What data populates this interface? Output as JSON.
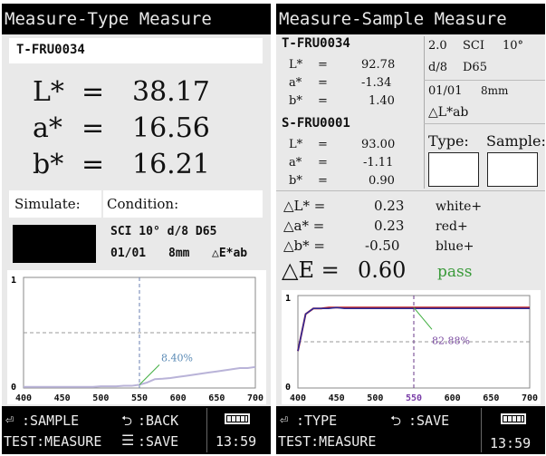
{
  "left": {
    "title": "Measure-Type Measure",
    "sample_id": "T-FRU0034",
    "L": {
      "label": "L*",
      "eq": "=",
      "value": "38.17"
    },
    "a": {
      "label": "a*",
      "eq": "=",
      "value": "16.56"
    },
    "b": {
      "label": "b*",
      "eq": "=",
      "value": "16.21"
    },
    "simulate_label": "Simulate:",
    "condition_label": "Condition:",
    "condition_line1": "SCI 10° d/8 D65",
    "condition_line2_a": "01/01",
    "condition_line2_b": "8mm",
    "condition_line2_c": "△E*ab",
    "graph": {
      "y_max": "1",
      "y_min": "0",
      "x_ticks": [
        "400",
        "450",
        "500",
        "550",
        "600",
        "650",
        "700"
      ],
      "annotation": "8.40%",
      "marker_x": 550
    },
    "footer": {
      "sample_label": ":SAMPLE",
      "back_label": ":BACK",
      "test_label": "TEST:MEASURE",
      "save_label": ":SAVE",
      "time": "13:59"
    }
  },
  "right": {
    "title": "Measure-Sample Measure",
    "target_id": "T-FRU0034",
    "target_L": {
      "label": "L*",
      "eq": "=",
      "value": "92.78"
    },
    "target_a": {
      "label": "a*",
      "eq": "=",
      "value": "-1.34"
    },
    "target_b": {
      "label": "b*",
      "eq": "=",
      "value": "1.40"
    },
    "sample_id": "S-FRU0001",
    "sample_L": {
      "label": "L*",
      "eq": "=",
      "value": "93.00"
    },
    "sample_a": {
      "label": "a*",
      "eq": "=",
      "value": "-1.11"
    },
    "sample_b": {
      "label": "b*",
      "eq": "=",
      "value": "0.90"
    },
    "info_line1_a": "2.0",
    "info_line1_b": "SCI",
    "info_line1_c": "10°",
    "info_line2_a": "d/8",
    "info_line2_b": "D65",
    "info_line3_a": "01/01",
    "info_line3_b": "8mm",
    "info_line4": "△L*ab",
    "type_label": "Type:",
    "sample_label": "Sample:",
    "dL": {
      "label": "△L* =",
      "value": "0.23",
      "desc": "white+"
    },
    "da": {
      "label": "△a* =",
      "value": "0.23",
      "desc": "red+"
    },
    "db": {
      "label": "△b* =",
      "value": "-0.50",
      "desc": "blue+"
    },
    "dE": {
      "label": "△E = ",
      "value": "0.60",
      "result": "pass"
    },
    "pass_color": "#3a9a3a",
    "graph": {
      "y_max": "1",
      "y_min": "0",
      "x_ticks": [
        "400",
        "450",
        "500",
        "550",
        "600",
        "650",
        "700"
      ],
      "highlight_tick": "550",
      "annotation": "82.88%",
      "marker_x": 550
    },
    "footer": {
      "type_label": ":TYPE",
      "save_label": ":SAVE",
      "test_label": "TEST:MEASURE",
      "time": "13:59"
    }
  },
  "chart_data": [
    {
      "type": "line",
      "x": [
        400,
        410,
        420,
        430,
        440,
        450,
        460,
        470,
        480,
        490,
        500,
        510,
        520,
        530,
        540,
        550,
        560,
        570,
        580,
        590,
        600,
        610,
        620,
        630,
        640,
        650,
        660,
        670,
        680,
        690,
        700
      ],
      "series": [
        {
          "values": [
            0.01,
            0.01,
            0.01,
            0.01,
            0.01,
            0.01,
            0.01,
            0.01,
            0.01,
            0.01,
            0.015,
            0.015,
            0.015,
            0.02,
            0.02,
            0.03,
            0.05,
            0.08,
            0.084,
            0.09,
            0.1,
            0.11,
            0.12,
            0.13,
            0.14,
            0.15,
            0.16,
            0.17,
            0.18,
            0.18,
            0.19
          ]
        }
      ],
      "xlim": [
        400,
        700
      ],
      "ylim": [
        0,
        1
      ],
      "annotations": [
        "8.40%"
      ]
    },
    {
      "type": "line",
      "x": [
        400,
        405,
        410,
        420,
        430,
        440,
        450,
        460,
        480,
        500,
        520,
        540,
        560,
        580,
        600,
        620,
        640,
        660,
        680,
        700
      ],
      "series": [
        {
          "values": [
            0.4,
            0.6,
            0.8,
            0.86,
            0.86,
            0.87,
            0.87,
            0.87,
            0.87,
            0.87,
            0.87,
            0.87,
            0.87,
            0.87,
            0.87,
            0.87,
            0.87,
            0.87,
            0.87,
            0.87
          ]
        },
        {
          "values": [
            0.4,
            0.6,
            0.8,
            0.86,
            0.86,
            0.86,
            0.87,
            0.86,
            0.86,
            0.86,
            0.86,
            0.86,
            0.86,
            0.86,
            0.86,
            0.86,
            0.86,
            0.86,
            0.86,
            0.86
          ]
        }
      ],
      "xlim": [
        400,
        700
      ],
      "ylim": [
        0,
        1
      ],
      "annotations": [
        "82.88%"
      ]
    }
  ]
}
